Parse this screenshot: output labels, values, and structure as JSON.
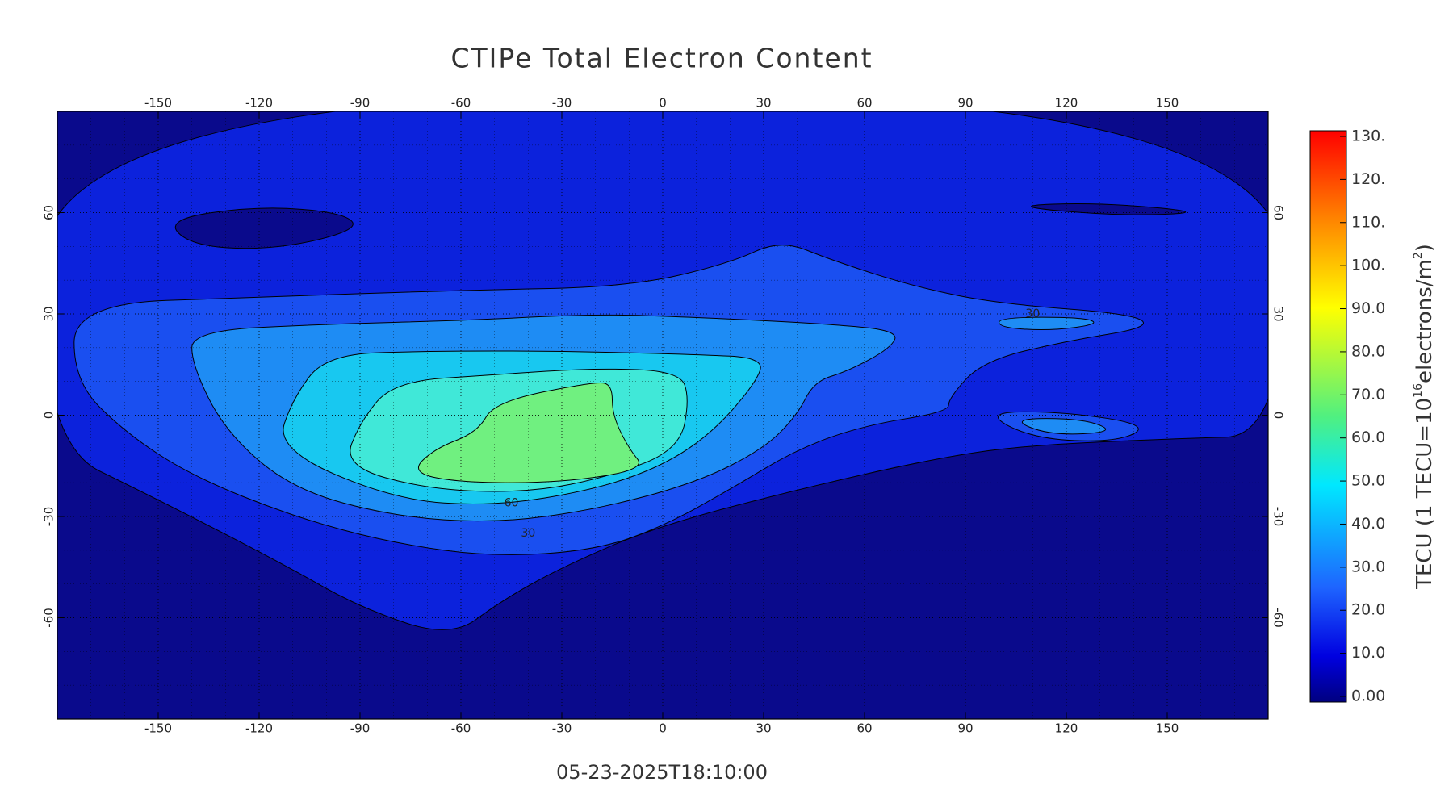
{
  "chart_data": {
    "type": "contour",
    "title": "CTIPe Total Electron Content",
    "timestamp": "05-23-2025T18:10:00",
    "xlim": [
      -180,
      180
    ],
    "ylim": [
      -90,
      90
    ],
    "xticks": [
      -150,
      -120,
      -90,
      -60,
      -30,
      0,
      30,
      60,
      90,
      120,
      150
    ],
    "yticks": [
      -60,
      -30,
      0,
      30,
      60
    ],
    "grid": true,
    "contour_labels": [
      60,
      30,
      30
    ],
    "colorbar": {
      "label_parts": [
        "TECU (1 TECU=10",
        "16",
        "electrons/m",
        "2",
        ")"
      ],
      "lim": [
        0,
        130
      ],
      "ticks": [
        {
          "value": 0,
          "label": "0.00"
        },
        {
          "value": 10,
          "label": "10.0"
        },
        {
          "value": 20,
          "label": "20.0"
        },
        {
          "value": 30,
          "label": "30.0"
        },
        {
          "value": 40,
          "label": "40.0"
        },
        {
          "value": 50,
          "label": "50.0"
        },
        {
          "value": 60,
          "label": "60.0"
        },
        {
          "value": 70,
          "label": "70.0"
        },
        {
          "value": 80,
          "label": "80.0"
        },
        {
          "value": 90,
          "label": "90.0"
        },
        {
          "value": 100,
          "label": "100."
        },
        {
          "value": 110,
          "label": "110."
        },
        {
          "value": 120,
          "label": "120."
        },
        {
          "value": 130,
          "label": "130."
        }
      ]
    }
  }
}
